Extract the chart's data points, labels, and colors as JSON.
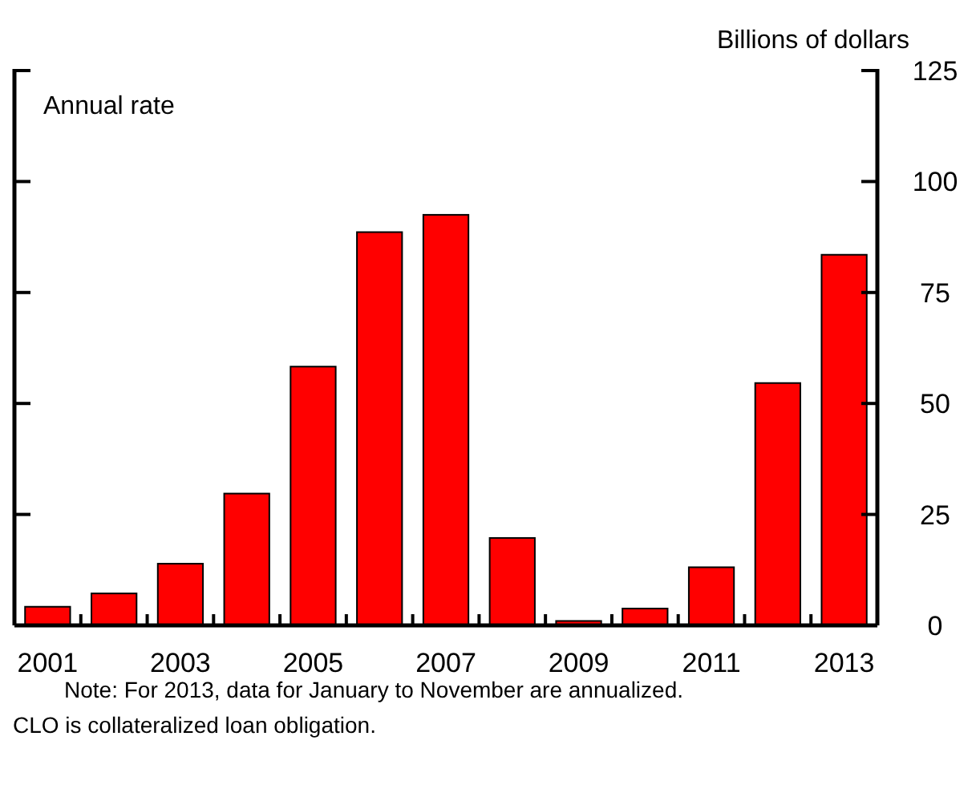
{
  "chart_data": {
    "type": "bar",
    "ylabel": "Billions of dollars",
    "categories": [
      "2001",
      null,
      "2003",
      null,
      "2005",
      null,
      "2007",
      null,
      "2009",
      null,
      "2011",
      null,
      "2013"
    ],
    "values": [
      4.2,
      7.2,
      13.9,
      29.7,
      58.3,
      88.6,
      92.5,
      19.7,
      1,
      3.8,
      13.1,
      54.6,
      83.5
    ],
    "color": "#ff0000",
    "ylim": [
      0,
      125
    ],
    "yticks": [
      0,
      25,
      50,
      75,
      100,
      125
    ],
    "grid": false,
    "annotations": [
      "Annual rate",
      "Note: For 2013, data for January to November are annualized.",
      "CLO is collateralized loan obligation."
    ]
  }
}
